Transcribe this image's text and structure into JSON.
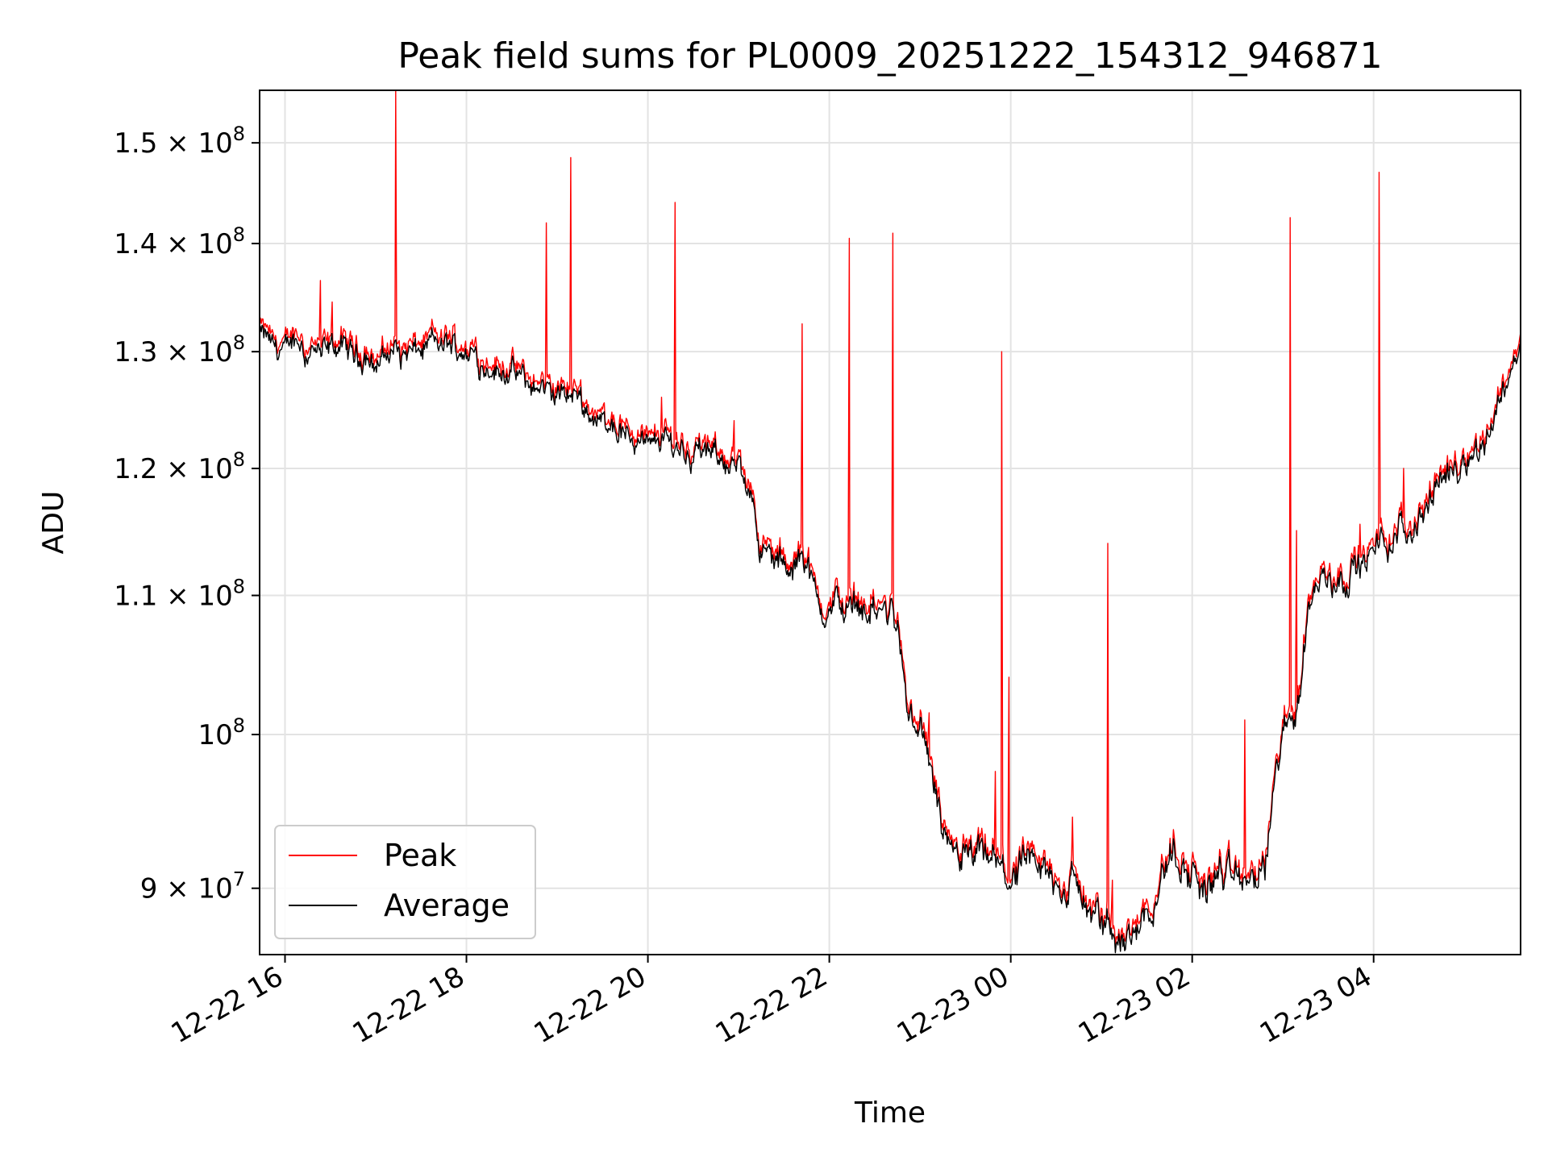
{
  "chart_data": {
    "type": "line",
    "title": "Peak field sums for PL0009_20251222_154312_946871",
    "xlabel": "Time",
    "ylabel": "ADU",
    "yscale": "log",
    "grid": true,
    "xlim": [
      15.72,
      29.62
    ],
    "ylim": [
      86000000,
      155500000
    ],
    "x_ticks": [
      {
        "value": 16,
        "label": "12-22 16"
      },
      {
        "value": 18,
        "label": "12-22 18"
      },
      {
        "value": 20,
        "label": "12-22 20"
      },
      {
        "value": 22,
        "label": "12-22 22"
      },
      {
        "value": 24,
        "label": "12-23 00"
      },
      {
        "value": 26,
        "label": "12-23 02"
      },
      {
        "value": 28,
        "label": "12-23 04"
      }
    ],
    "y_ticks": [
      {
        "value": 90000000,
        "base": "9",
        "exp": "7"
      },
      {
        "value": 100000000,
        "base": "",
        "exp": "8"
      },
      {
        "value": 110000000,
        "base": "1.1",
        "exp": "8"
      },
      {
        "value": 120000000,
        "base": "1.2",
        "exp": "8"
      },
      {
        "value": 130000000,
        "base": "1.3",
        "exp": "8"
      },
      {
        "value": 140000000,
        "base": "1.4",
        "exp": "8"
      },
      {
        "value": 150000000,
        "base": "1.5",
        "exp": "8"
      }
    ],
    "legend": {
      "position": "lower-left",
      "entries": [
        "Peak",
        "Average"
      ]
    },
    "series": [
      {
        "name": "Average",
        "color": "#000000",
        "trend": [
          [
            15.72,
            131.5
          ],
          [
            16.0,
            130.5
          ],
          [
            16.5,
            130.5
          ],
          [
            17.0,
            129.5
          ],
          [
            17.5,
            130.0
          ],
          [
            17.8,
            131.0
          ],
          [
            18.2,
            129.0
          ],
          [
            18.7,
            127.0
          ],
          [
            19.2,
            125.5
          ],
          [
            19.6,
            124.0
          ],
          [
            20.0,
            121.5
          ],
          [
            20.3,
            121.5
          ],
          [
            20.6,
            122.0
          ],
          [
            21.0,
            119.5
          ],
          [
            21.15,
            118.5
          ],
          [
            21.25,
            113.0
          ],
          [
            21.6,
            112.0
          ],
          [
            21.7,
            113.5
          ],
          [
            21.85,
            109.5
          ],
          [
            22.3,
            109.0
          ],
          [
            22.7,
            108.5
          ],
          [
            22.78,
            107.5
          ],
          [
            22.85,
            102.0
          ],
          [
            23.0,
            99.5
          ],
          [
            23.1,
            97.5
          ],
          [
            23.2,
            95.5
          ],
          [
            23.3,
            91.5
          ],
          [
            23.8,
            91.0
          ],
          [
            24.0,
            90.5
          ],
          [
            24.5,
            90.5
          ],
          [
            24.7,
            90.3
          ],
          [
            24.85,
            88.8
          ],
          [
            25.1,
            87.3
          ],
          [
            25.4,
            87.8
          ],
          [
            25.6,
            90.0
          ],
          [
            25.8,
            92.0
          ],
          [
            26.0,
            90.5
          ],
          [
            26.3,
            91.0
          ],
          [
            26.6,
            90.5
          ],
          [
            26.8,
            91.0
          ],
          [
            26.95,
            98.0
          ],
          [
            27.1,
            101.5
          ],
          [
            27.2,
            104.5
          ],
          [
            27.3,
            111.0
          ],
          [
            27.6,
            111.5
          ],
          [
            28.0,
            113.5
          ],
          [
            28.3,
            115.0
          ],
          [
            28.6,
            117.5
          ],
          [
            28.9,
            119.5
          ],
          [
            29.2,
            122.0
          ],
          [
            29.45,
            127.0
          ],
          [
            29.62,
            130.5
          ]
        ]
      },
      {
        "name": "Peak",
        "color": "#ff0000",
        "spikes": [
          {
            "x": 16.39,
            "y": 136.5
          },
          {
            "x": 16.52,
            "y": 134.5
          },
          {
            "x": 17.22,
            "y": 155.5
          },
          {
            "x": 18.88,
            "y": 142.0
          },
          {
            "x": 19.15,
            "y": 148.5
          },
          {
            "x": 20.15,
            "y": 126.0
          },
          {
            "x": 20.3,
            "y": 144.0
          },
          {
            "x": 20.95,
            "y": 124.0
          },
          {
            "x": 21.7,
            "y": 132.5
          },
          {
            "x": 22.22,
            "y": 140.5
          },
          {
            "x": 22.7,
            "y": 141.0
          },
          {
            "x": 23.1,
            "y": 101.5
          },
          {
            "x": 23.83,
            "y": 97.5
          },
          {
            "x": 23.9,
            "y": 130.0
          },
          {
            "x": 23.98,
            "y": 104.0
          },
          {
            "x": 24.68,
            "y": 94.5
          },
          {
            "x": 25.07,
            "y": 114.0
          },
          {
            "x": 25.12,
            "y": 90.5
          },
          {
            "x": 26.58,
            "y": 101.0
          },
          {
            "x": 27.08,
            "y": 142.5
          },
          {
            "x": 27.15,
            "y": 115.0
          },
          {
            "x": 27.85,
            "y": 115.5
          },
          {
            "x": 28.06,
            "y": 147.0
          },
          {
            "x": 28.33,
            "y": 120.0
          }
        ]
      }
    ]
  }
}
